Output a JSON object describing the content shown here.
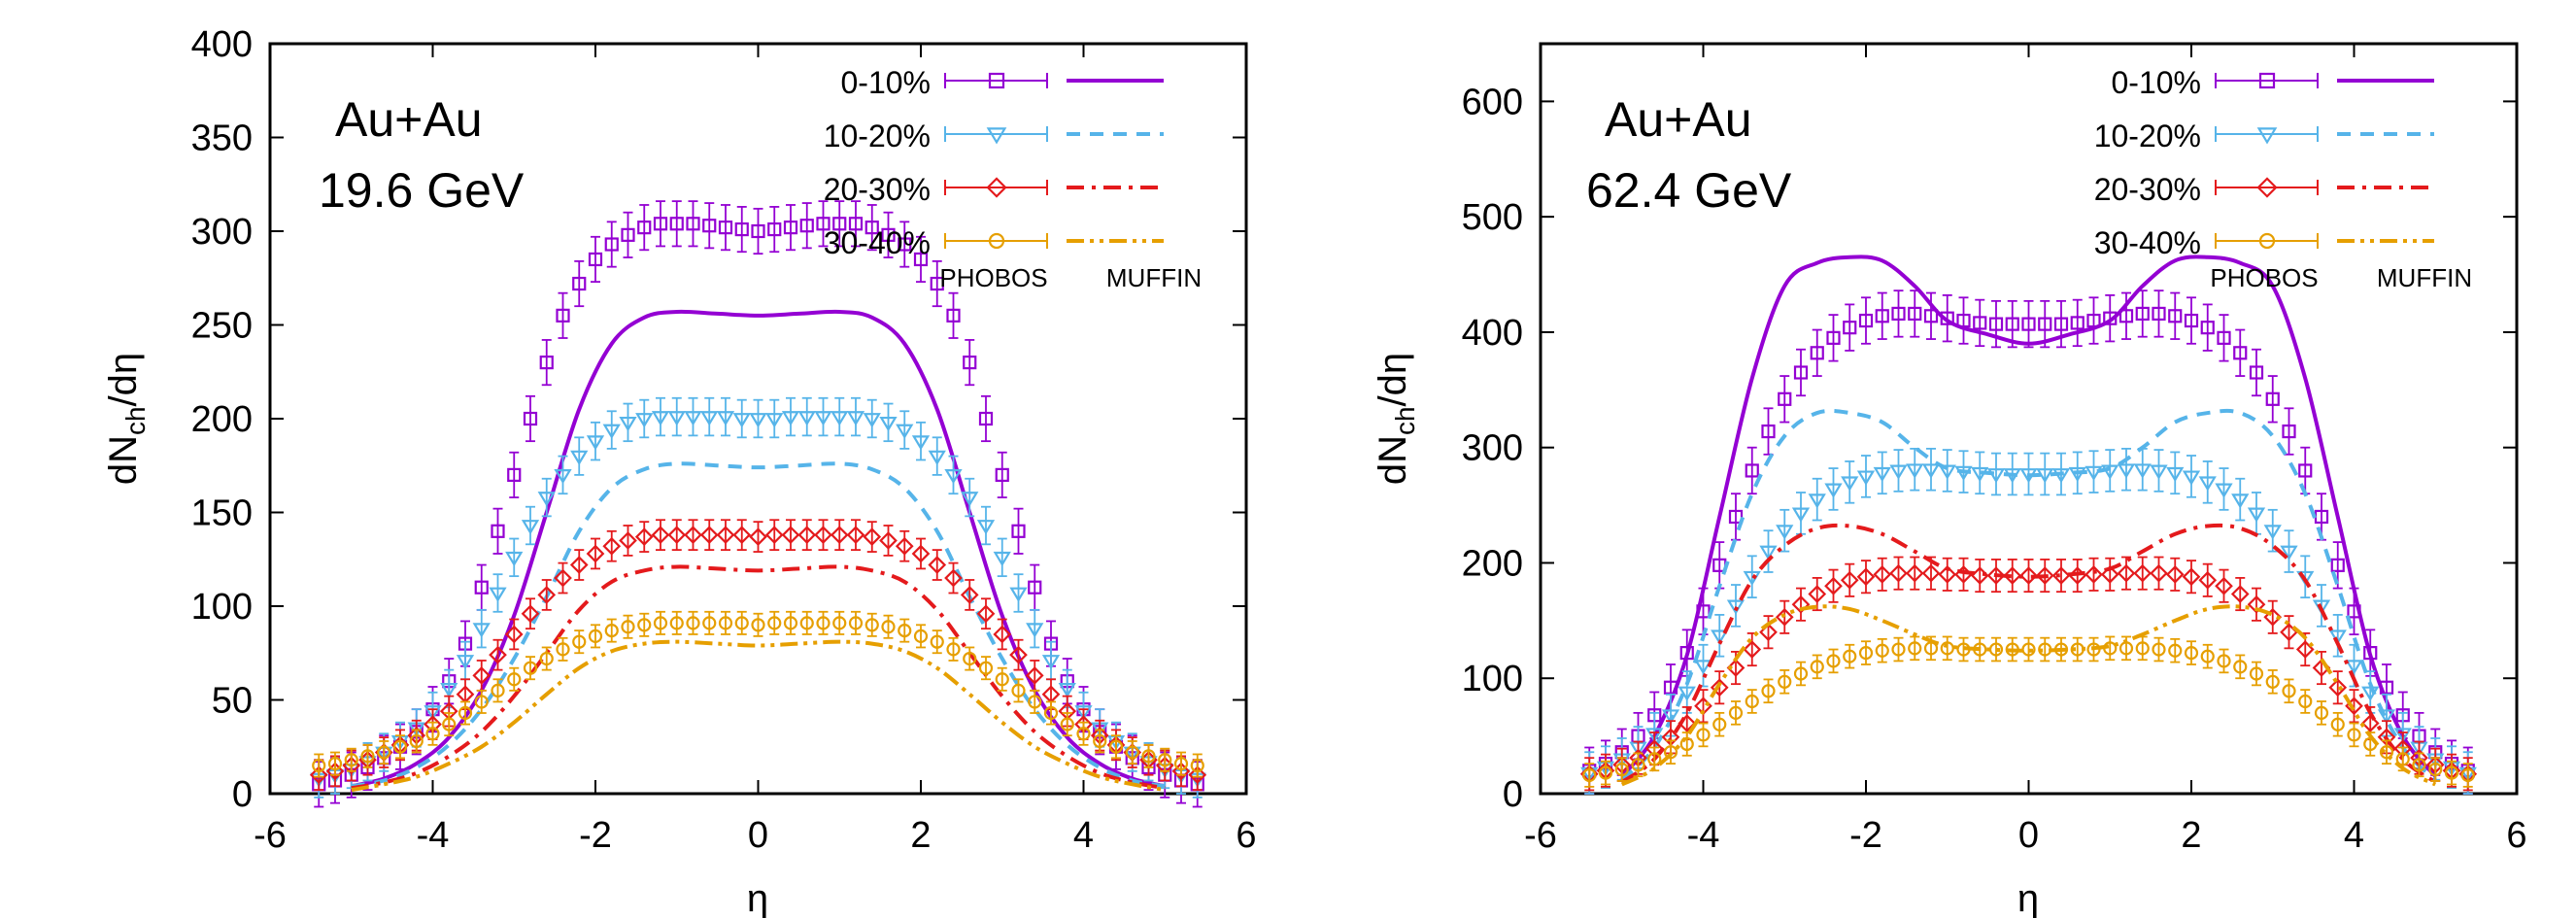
{
  "chart_data": [
    {
      "type": "line",
      "annotation": [
        "Au+Au",
        "19.6 GeV"
      ],
      "xlabel": "η",
      "ylabel": "dN_ch/dη",
      "xlim": [
        -6,
        6
      ],
      "ylim": [
        0,
        400
      ],
      "xticks": [
        -6,
        -4,
        -2,
        0,
        2,
        4,
        6
      ],
      "yticks": [
        0,
        50,
        100,
        150,
        200,
        250,
        300,
        350,
        400
      ],
      "legend_position": "top-right",
      "legend_footer": [
        "PHOBOS",
        "MUFFIN"
      ],
      "data_x": [
        -5.4,
        -5.2,
        -5.0,
        -4.8,
        -4.6,
        -4.4,
        -4.2,
        -4.0,
        -3.8,
        -3.6,
        -3.4,
        -3.2,
        -3.0,
        -2.8,
        -2.6,
        -2.4,
        -2.2,
        -2.0,
        -1.8,
        -1.6,
        -1.4,
        -1.2,
        -1.0,
        -0.8,
        -0.6,
        -0.4,
        -0.2,
        0.0,
        0.2,
        0.4,
        0.6,
        0.8,
        1.0,
        1.2,
        1.4,
        1.6,
        1.8,
        2.0,
        2.2,
        2.4,
        2.6,
        2.8,
        3.0,
        3.2,
        3.4,
        3.6,
        3.8,
        4.0,
        4.2,
        4.4,
        4.6,
        4.8,
        5.0,
        5.2,
        5.4
      ],
      "model_x": [
        -5.0,
        -4.6,
        -4.2,
        -3.8,
        -3.4,
        -3.0,
        -2.6,
        -2.2,
        -1.8,
        -1.4,
        -1.0,
        -0.5,
        0.0,
        0.5,
        1.0,
        1.4,
        1.8,
        2.2,
        2.6,
        3.0,
        3.4,
        3.8,
        4.2,
        4.6,
        5.0
      ],
      "series": [
        {
          "name": "0-10%",
          "color": "#9400d3",
          "marker": "square",
          "line_style": "solid",
          "data_values": [
            5,
            7,
            10,
            14,
            19,
            25,
            33,
            45,
            60,
            80,
            110,
            140,
            170,
            200,
            230,
            255,
            272,
            285,
            293,
            298,
            302,
            304,
            304,
            304,
            303,
            302,
            301,
            300,
            301,
            302,
            303,
            304,
            304,
            304,
            302,
            298,
            293,
            285,
            272,
            255,
            230,
            200,
            170,
            140,
            110,
            80,
            60,
            45,
            33,
            25,
            19,
            14,
            10,
            7,
            5
          ],
          "error": 12,
          "model_values": [
            4,
            8,
            16,
            30,
            55,
            95,
            150,
            205,
            240,
            254,
            257,
            256,
            255,
            256,
            257,
            254,
            240,
            205,
            150,
            95,
            55,
            30,
            16,
            8,
            4
          ]
        },
        {
          "name": "10-20%",
          "color": "#56b4e9",
          "marker": "triangle-down",
          "line_style": "dashed",
          "data_values": [
            8,
            10,
            13,
            17,
            22,
            28,
            35,
            44,
            56,
            71,
            88,
            107,
            126,
            143,
            158,
            170,
            180,
            188,
            194,
            198,
            200,
            201,
            201,
            201,
            201,
            201,
            200,
            200,
            200,
            201,
            201,
            201,
            201,
            201,
            200,
            198,
            194,
            188,
            180,
            170,
            158,
            143,
            126,
            107,
            88,
            71,
            56,
            44,
            35,
            28,
            22,
            17,
            13,
            10,
            8
          ],
          "error": 10,
          "model_values": [
            4,
            7,
            14,
            26,
            45,
            72,
            105,
            140,
            163,
            173,
            176,
            175,
            174,
            175,
            176,
            173,
            163,
            140,
            105,
            72,
            45,
            26,
            14,
            7,
            4
          ]
        },
        {
          "name": "20-30%",
          "color": "#e41a1c",
          "marker": "diamond",
          "line_style": "dash-dot",
          "data_values": [
            10,
            12,
            15,
            18,
            22,
            26,
            31,
            37,
            44,
            53,
            63,
            74,
            85,
            96,
            106,
            115,
            122,
            128,
            132,
            135,
            137,
            138,
            138,
            138,
            138,
            138,
            138,
            137,
            138,
            138,
            138,
            138,
            138,
            138,
            137,
            135,
            132,
            128,
            122,
            115,
            106,
            96,
            85,
            74,
            63,
            53,
            44,
            37,
            31,
            26,
            22,
            18,
            15,
            12,
            10
          ],
          "error": 8,
          "model_values": [
            3,
            6,
            11,
            20,
            33,
            52,
            75,
            98,
            113,
            119,
            121,
            120,
            119,
            120,
            121,
            119,
            113,
            98,
            75,
            52,
            33,
            20,
            11,
            6,
            3
          ]
        },
        {
          "name": "30-40%",
          "color": "#e69f00",
          "marker": "circle",
          "line_style": "dash-dot-dot",
          "data_values": [
            15,
            16,
            18,
            20,
            22,
            25,
            28,
            32,
            37,
            43,
            49,
            55,
            61,
            67,
            72,
            77,
            81,
            84,
            87,
            89,
            90,
            91,
            91,
            91,
            91,
            91,
            91,
            90,
            91,
            91,
            91,
            91,
            91,
            91,
            90,
            89,
            87,
            84,
            81,
            77,
            72,
            67,
            61,
            55,
            49,
            43,
            37,
            32,
            28,
            25,
            22,
            20,
            18,
            16,
            15
          ],
          "error": 6,
          "model_values": [
            2,
            5,
            9,
            16,
            25,
            38,
            53,
            67,
            76,
            80,
            81,
            80,
            79,
            80,
            81,
            80,
            76,
            67,
            53,
            38,
            25,
            16,
            9,
            5,
            2
          ]
        }
      ]
    },
    {
      "type": "line",
      "annotation": [
        "Au+Au",
        "62.4 GeV"
      ],
      "xlabel": "η",
      "ylabel": "dN_ch/dη",
      "xlim": [
        -6,
        6
      ],
      "ylim": [
        0,
        650
      ],
      "xticks": [
        -6,
        -4,
        -2,
        0,
        2,
        4,
        6
      ],
      "yticks": [
        0,
        100,
        200,
        300,
        400,
        500,
        600
      ],
      "legend_position": "top-right",
      "legend_footer": [
        "PHOBOS",
        "MUFFIN"
      ],
      "data_x": [
        -5.4,
        -5.2,
        -5.0,
        -4.8,
        -4.6,
        -4.4,
        -4.2,
        -4.0,
        -3.8,
        -3.6,
        -3.4,
        -3.2,
        -3.0,
        -2.8,
        -2.6,
        -2.4,
        -2.2,
        -2.0,
        -1.8,
        -1.6,
        -1.4,
        -1.2,
        -1.0,
        -0.8,
        -0.6,
        -0.4,
        -0.2,
        0.0,
        0.2,
        0.4,
        0.6,
        0.8,
        1.0,
        1.2,
        1.4,
        1.6,
        1.8,
        2.0,
        2.2,
        2.4,
        2.6,
        2.8,
        3.0,
        3.2,
        3.4,
        3.6,
        3.8,
        4.0,
        4.2,
        4.4,
        4.6,
        4.8,
        5.0,
        5.2,
        5.4
      ],
      "model_x": [
        -5.0,
        -4.6,
        -4.2,
        -3.8,
        -3.4,
        -3.0,
        -2.6,
        -2.2,
        -1.8,
        -1.4,
        -1.0,
        -0.5,
        0.0,
        0.5,
        1.0,
        1.4,
        1.8,
        2.2,
        2.6,
        3.0,
        3.4,
        3.8,
        4.2,
        4.6,
        5.0
      ],
      "series": [
        {
          "name": "0-10%",
          "color": "#9400d3",
          "marker": "square",
          "line_style": "solid",
          "data_values": [
            20,
            26,
            36,
            50,
            68,
            92,
            122,
            158,
            198,
            240,
            280,
            314,
            342,
            365,
            382,
            395,
            404,
            410,
            414,
            416,
            416,
            414,
            412,
            410,
            408,
            407,
            407,
            407,
            407,
            407,
            408,
            410,
            412,
            414,
            416,
            416,
            414,
            410,
            404,
            395,
            382,
            365,
            342,
            314,
            280,
            240,
            198,
            158,
            122,
            92,
            68,
            50,
            36,
            26,
            20
          ],
          "error": 20,
          "model_values": [
            15,
            50,
            120,
            240,
            360,
            440,
            460,
            465,
            462,
            440,
            410,
            398,
            390,
            398,
            410,
            440,
            462,
            465,
            460,
            440,
            360,
            240,
            120,
            50,
            15
          ]
        },
        {
          "name": "10-20%",
          "color": "#56b4e9",
          "marker": "triangle-down",
          "line_style": "dashed",
          "data_values": [
            18,
            23,
            30,
            40,
            52,
            68,
            88,
            111,
            137,
            163,
            188,
            210,
            228,
            243,
            255,
            264,
            270,
            275,
            278,
            280,
            281,
            281,
            280,
            279,
            278,
            277,
            277,
            277,
            277,
            277,
            278,
            279,
            280,
            281,
            281,
            280,
            278,
            275,
            270,
            264,
            255,
            243,
            228,
            210,
            188,
            163,
            137,
            111,
            88,
            68,
            52,
            40,
            30,
            23,
            18
          ],
          "error": 18,
          "model_values": [
            12,
            40,
            95,
            180,
            260,
            310,
            330,
            330,
            322,
            300,
            282,
            278,
            276,
            278,
            282,
            300,
            322,
            330,
            330,
            310,
            260,
            180,
            95,
            40,
            12
          ]
        },
        {
          "name": "20-30%",
          "color": "#e41a1c",
          "marker": "diamond",
          "line_style": "dash-dot",
          "data_values": [
            17,
            20,
            25,
            31,
            39,
            49,
            61,
            76,
            92,
            109,
            125,
            140,
            153,
            164,
            173,
            180,
            185,
            188,
            190,
            191,
            191,
            191,
            190,
            190,
            189,
            189,
            189,
            189,
            189,
            189,
            189,
            190,
            190,
            191,
            191,
            191,
            190,
            188,
            185,
            180,
            173,
            164,
            153,
            140,
            125,
            109,
            92,
            76,
            61,
            49,
            39,
            31,
            25,
            20,
            17
          ],
          "error": 14,
          "model_values": [
            10,
            30,
            70,
            130,
            185,
            215,
            230,
            232,
            225,
            210,
            195,
            190,
            188,
            190,
            195,
            210,
            225,
            232,
            230,
            215,
            185,
            130,
            70,
            30,
            10
          ]
        },
        {
          "name": "30-40%",
          "color": "#e69f00",
          "marker": "circle",
          "line_style": "dash-dot-dot",
          "data_values": [
            16,
            18,
            21,
            25,
            30,
            36,
            43,
            51,
            60,
            70,
            80,
            89,
            97,
            104,
            110,
            115,
            119,
            122,
            124,
            125,
            126,
            126,
            126,
            125,
            125,
            125,
            125,
            125,
            125,
            125,
            125,
            125,
            126,
            126,
            126,
            125,
            124,
            122,
            119,
            115,
            110,
            104,
            97,
            89,
            80,
            70,
            60,
            51,
            43,
            36,
            30,
            25,
            21,
            18,
            16
          ],
          "error": 10,
          "model_values": [
            8,
            22,
            50,
            95,
            135,
            155,
            162,
            160,
            150,
            138,
            128,
            125,
            124,
            125,
            128,
            138,
            150,
            160,
            162,
            155,
            135,
            95,
            50,
            22,
            8
          ]
        }
      ]
    }
  ]
}
